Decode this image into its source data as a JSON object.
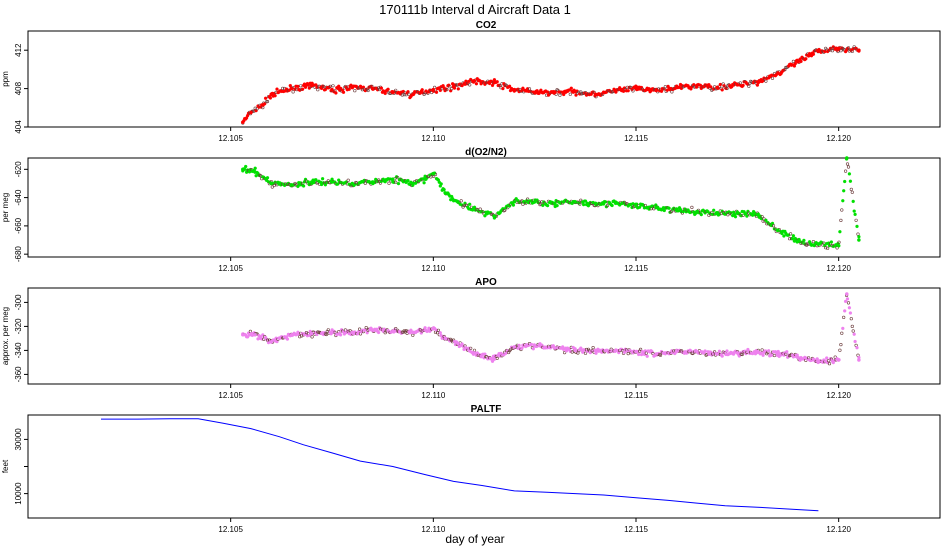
{
  "figure": {
    "title": "170111b   Interval d Aircraft Data 1",
    "xlabel": "day of year"
  },
  "chart_data": [
    {
      "type": "scatter",
      "title": "CO2",
      "ylabel": "ppm",
      "xlim": [
        12.1,
        12.1225
      ],
      "ylim": [
        404,
        414
      ],
      "xticks": [
        "12.105",
        "12.110",
        "12.115",
        "12.120"
      ],
      "yticks": [
        "404",
        "408",
        "412"
      ],
      "color": "#ff0000",
      "grid": false,
      "x": [
        12.1053,
        12.1055,
        12.1058,
        12.106,
        12.1065,
        12.107,
        12.1075,
        12.108,
        12.1085,
        12.109,
        12.1095,
        12.11,
        12.1105,
        12.111,
        12.1115,
        12.112,
        12.1125,
        12.113,
        12.1135,
        12.114,
        12.1145,
        12.115,
        12.1155,
        12.116,
        12.1165,
        12.117,
        12.1175,
        12.118,
        12.1185,
        12.119,
        12.1195,
        12.12,
        12.1205
      ],
      "y": [
        404.5,
        405.5,
        406.3,
        407.4,
        408.0,
        408.3,
        407.9,
        408.1,
        408.0,
        407.6,
        407.4,
        407.9,
        408.2,
        408.8,
        408.6,
        407.9,
        407.6,
        407.6,
        407.7,
        407.4,
        407.8,
        408.0,
        407.8,
        408.1,
        408.3,
        408.1,
        408.4,
        408.7,
        409.6,
        410.8,
        411.9,
        412.2,
        412.0
      ]
    },
    {
      "type": "scatter",
      "title": "d(O2/N2)",
      "ylabel": "per meg",
      "xlim": [
        12.1,
        12.1225
      ],
      "ylim": [
        -682,
        -612
      ],
      "xticks": [
        "12.105",
        "12.110",
        "12.115",
        "12.120"
      ],
      "yticks": [
        "-620",
        "-640",
        "-660",
        "-680"
      ],
      "color": "#00e000",
      "grid": false,
      "x": [
        12.1053,
        12.1056,
        12.106,
        12.1065,
        12.107,
        12.1075,
        12.108,
        12.1085,
        12.109,
        12.1095,
        12.1098,
        12.11,
        12.1103,
        12.1106,
        12.111,
        12.1115,
        12.112,
        12.1125,
        12.113,
        12.1135,
        12.114,
        12.1145,
        12.115,
        12.1155,
        12.116,
        12.1165,
        12.117,
        12.1175,
        12.118,
        12.1185,
        12.119,
        12.1195,
        12.12,
        12.1202,
        12.1205
      ],
      "y": [
        -620,
        -622,
        -630,
        -631,
        -629,
        -629,
        -630,
        -629,
        -627,
        -630,
        -627,
        -623,
        -637,
        -643,
        -648,
        -653,
        -643,
        -643,
        -644,
        -643,
        -644,
        -644,
        -646,
        -647,
        -649,
        -650,
        -651,
        -651,
        -652,
        -663,
        -671,
        -673,
        -674,
        -612,
        -670
      ]
    },
    {
      "type": "scatter",
      "title": "APO",
      "ylabel": "approx. per meg",
      "xlim": [
        12.1,
        12.1225
      ],
      "ylim": [
        -368,
        -288
      ],
      "xticks": [
        "12.105",
        "12.110",
        "12.115",
        "12.120"
      ],
      "yticks": [
        "-300",
        "-320",
        "-340",
        "-360"
      ],
      "color": "#ee82ee",
      "grid": false,
      "x": [
        12.1053,
        12.1056,
        12.106,
        12.1065,
        12.107,
        12.1075,
        12.108,
        12.1085,
        12.109,
        12.1095,
        12.11,
        12.1103,
        12.1106,
        12.111,
        12.1115,
        12.112,
        12.1125,
        12.113,
        12.1135,
        12.114,
        12.1145,
        12.115,
        12.1155,
        12.116,
        12.1165,
        12.117,
        12.1175,
        12.118,
        12.1185,
        12.119,
        12.1195,
        12.12,
        12.1202,
        12.1205
      ],
      "y": [
        -327,
        -327,
        -333,
        -327,
        -326,
        -325,
        -325,
        -323,
        -324,
        -325,
        -322,
        -330,
        -334,
        -342,
        -347,
        -337,
        -336,
        -338,
        -340,
        -340,
        -340,
        -341,
        -343,
        -341,
        -341,
        -343,
        -342,
        -341,
        -343,
        -346,
        -349,
        -348,
        -293,
        -348
      ]
    },
    {
      "type": "line",
      "title": "PALTF",
      "ylabel": "feet",
      "xlim": [
        12.1,
        12.1225
      ],
      "ylim": [
        1000,
        39000
      ],
      "xticks": [
        "12.105",
        "12.110",
        "12.115",
        "12.120"
      ],
      "yticks": [
        "10000",
        "30000"
      ],
      "yticks_unlabeled": [
        20000
      ],
      "color": "#0000ff",
      "grid": false,
      "x": [
        12.1018,
        12.1027,
        12.1035,
        12.1042,
        12.1048,
        12.1055,
        12.1062,
        12.1068,
        12.1075,
        12.1082,
        12.109,
        12.1098,
        12.1105,
        12.1112,
        12.112,
        12.1128,
        12.1135,
        12.1142,
        12.115,
        12.1158,
        12.1165,
        12.1172,
        12.118,
        12.1188,
        12.1195
      ],
      "y": [
        37500,
        37500,
        37600,
        37600,
        36000,
        34000,
        31000,
        28000,
        25000,
        22000,
        20000,
        17000,
        14500,
        13000,
        11000,
        10500,
        10000,
        9500,
        8500,
        7500,
        6500,
        5500,
        5000,
        4300,
        3700
      ]
    }
  ]
}
